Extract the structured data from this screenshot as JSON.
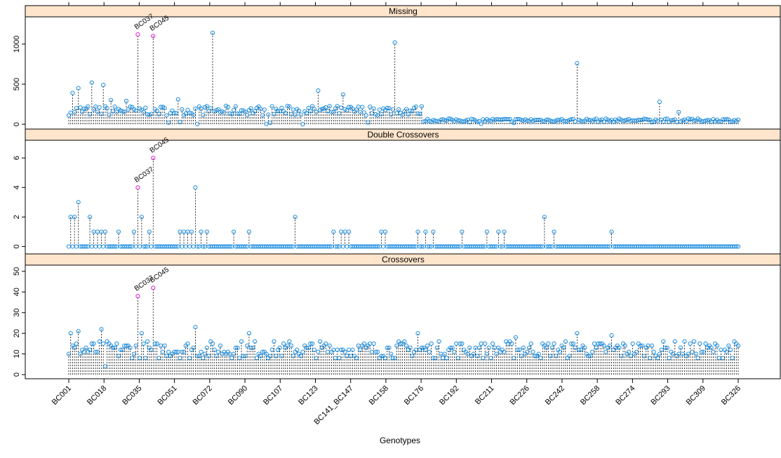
{
  "chart_data": {
    "type": "scatter",
    "style": "lattice-dropline-multipanel",
    "xlabel": "Genotypes",
    "x_tick_labels": [
      "BC001",
      "BC018",
      "BC035",
      "BC051",
      "BC072",
      "BC090",
      "BC107",
      "BC123",
      "BC141_BC147",
      "BC158",
      "BC176",
      "BC192",
      "BC211",
      "BC226",
      "BC242",
      "BC258",
      "BC274",
      "BC293",
      "BC309",
      "BC326"
    ],
    "n_genotypes": 350,
    "colors": {
      "point": "#1f8fe0",
      "highlight": "#e020d0",
      "strip": "#ffe5cc",
      "line": "#000000"
    },
    "panels": [
      {
        "name": "Missing",
        "ylim": [
          -60,
          1340
        ],
        "yticks": [
          0,
          500,
          1000
        ],
        "baseline": 170,
        "later_baseline": 50,
        "peaks": [
          {
            "index": 2,
            "value": 390
          },
          {
            "index": 5,
            "value": 450
          },
          {
            "index": 12,
            "value": 520
          },
          {
            "index": 18,
            "value": 490
          },
          {
            "index": 22,
            "value": 300
          },
          {
            "index": 30,
            "value": 290
          },
          {
            "index": 57,
            "value": 310
          },
          {
            "index": 75,
            "value": 1140
          },
          {
            "index": 130,
            "value": 420
          },
          {
            "index": 143,
            "value": 370
          },
          {
            "index": 170,
            "value": 1020
          },
          {
            "index": 265,
            "value": 760
          },
          {
            "index": 308,
            "value": 280
          },
          {
            "index": 318,
            "value": 150
          }
        ],
        "highlights": [
          {
            "index": 36,
            "value": 1120,
            "label": "BC037"
          },
          {
            "index": 44,
            "value": 1100,
            "label": "BC045"
          }
        ]
      },
      {
        "name": "Double Crossovers",
        "ylim": [
          -0.5,
          7.2
        ],
        "yticks": [
          0,
          2,
          4,
          6
        ],
        "baseline": 0,
        "peaks": [
          {
            "index": 1,
            "value": 2
          },
          {
            "index": 3,
            "value": 2
          },
          {
            "index": 5,
            "value": 3
          },
          {
            "index": 11,
            "value": 2
          },
          {
            "index": 13,
            "value": 1
          },
          {
            "index": 15,
            "value": 1
          },
          {
            "index": 17,
            "value": 1
          },
          {
            "index": 19,
            "value": 1
          },
          {
            "index": 26,
            "value": 1
          },
          {
            "index": 34,
            "value": 1
          },
          {
            "index": 38,
            "value": 2
          },
          {
            "index": 42,
            "value": 1
          },
          {
            "index": 58,
            "value": 1
          },
          {
            "index": 60,
            "value": 1
          },
          {
            "index": 62,
            "value": 1
          },
          {
            "index": 64,
            "value": 1
          },
          {
            "index": 66,
            "value": 4
          },
          {
            "index": 69,
            "value": 1
          },
          {
            "index": 72,
            "value": 1
          },
          {
            "index": 86,
            "value": 1
          },
          {
            "index": 94,
            "value": 1
          },
          {
            "index": 118,
            "value": 2
          },
          {
            "index": 138,
            "value": 1
          },
          {
            "index": 142,
            "value": 1
          },
          {
            "index": 144,
            "value": 1
          },
          {
            "index": 146,
            "value": 1
          },
          {
            "index": 163,
            "value": 1
          },
          {
            "index": 165,
            "value": 1
          },
          {
            "index": 182,
            "value": 1
          },
          {
            "index": 186,
            "value": 1
          },
          {
            "index": 190,
            "value": 1
          },
          {
            "index": 205,
            "value": 1
          },
          {
            "index": 218,
            "value": 1
          },
          {
            "index": 224,
            "value": 1
          },
          {
            "index": 227,
            "value": 1
          },
          {
            "index": 248,
            "value": 2
          },
          {
            "index": 253,
            "value": 1
          },
          {
            "index": 283,
            "value": 1
          }
        ],
        "highlights": [
          {
            "index": 36,
            "value": 4,
            "label": "BC037"
          },
          {
            "index": 44,
            "value": 6,
            "label": "BC045"
          }
        ]
      },
      {
        "name": "Crossovers",
        "ylim": [
          -2,
          53
        ],
        "yticks": [
          0,
          10,
          20,
          30,
          40,
          50
        ],
        "baseline": 12,
        "peaks": [
          {
            "index": 1,
            "value": 20
          },
          {
            "index": 5,
            "value": 21
          },
          {
            "index": 17,
            "value": 22
          },
          {
            "index": 38,
            "value": 20
          },
          {
            "index": 66,
            "value": 23
          },
          {
            "index": 94,
            "value": 20
          },
          {
            "index": 182,
            "value": 20
          },
          {
            "index": 233,
            "value": 18
          },
          {
            "index": 265,
            "value": 20
          },
          {
            "index": 283,
            "value": 19
          },
          {
            "index": 19,
            "value": 4
          }
        ],
        "highlights": [
          {
            "index": 36,
            "value": 38,
            "label": "BC037"
          },
          {
            "index": 44,
            "value": 42,
            "label": "BC045"
          }
        ]
      }
    ]
  }
}
